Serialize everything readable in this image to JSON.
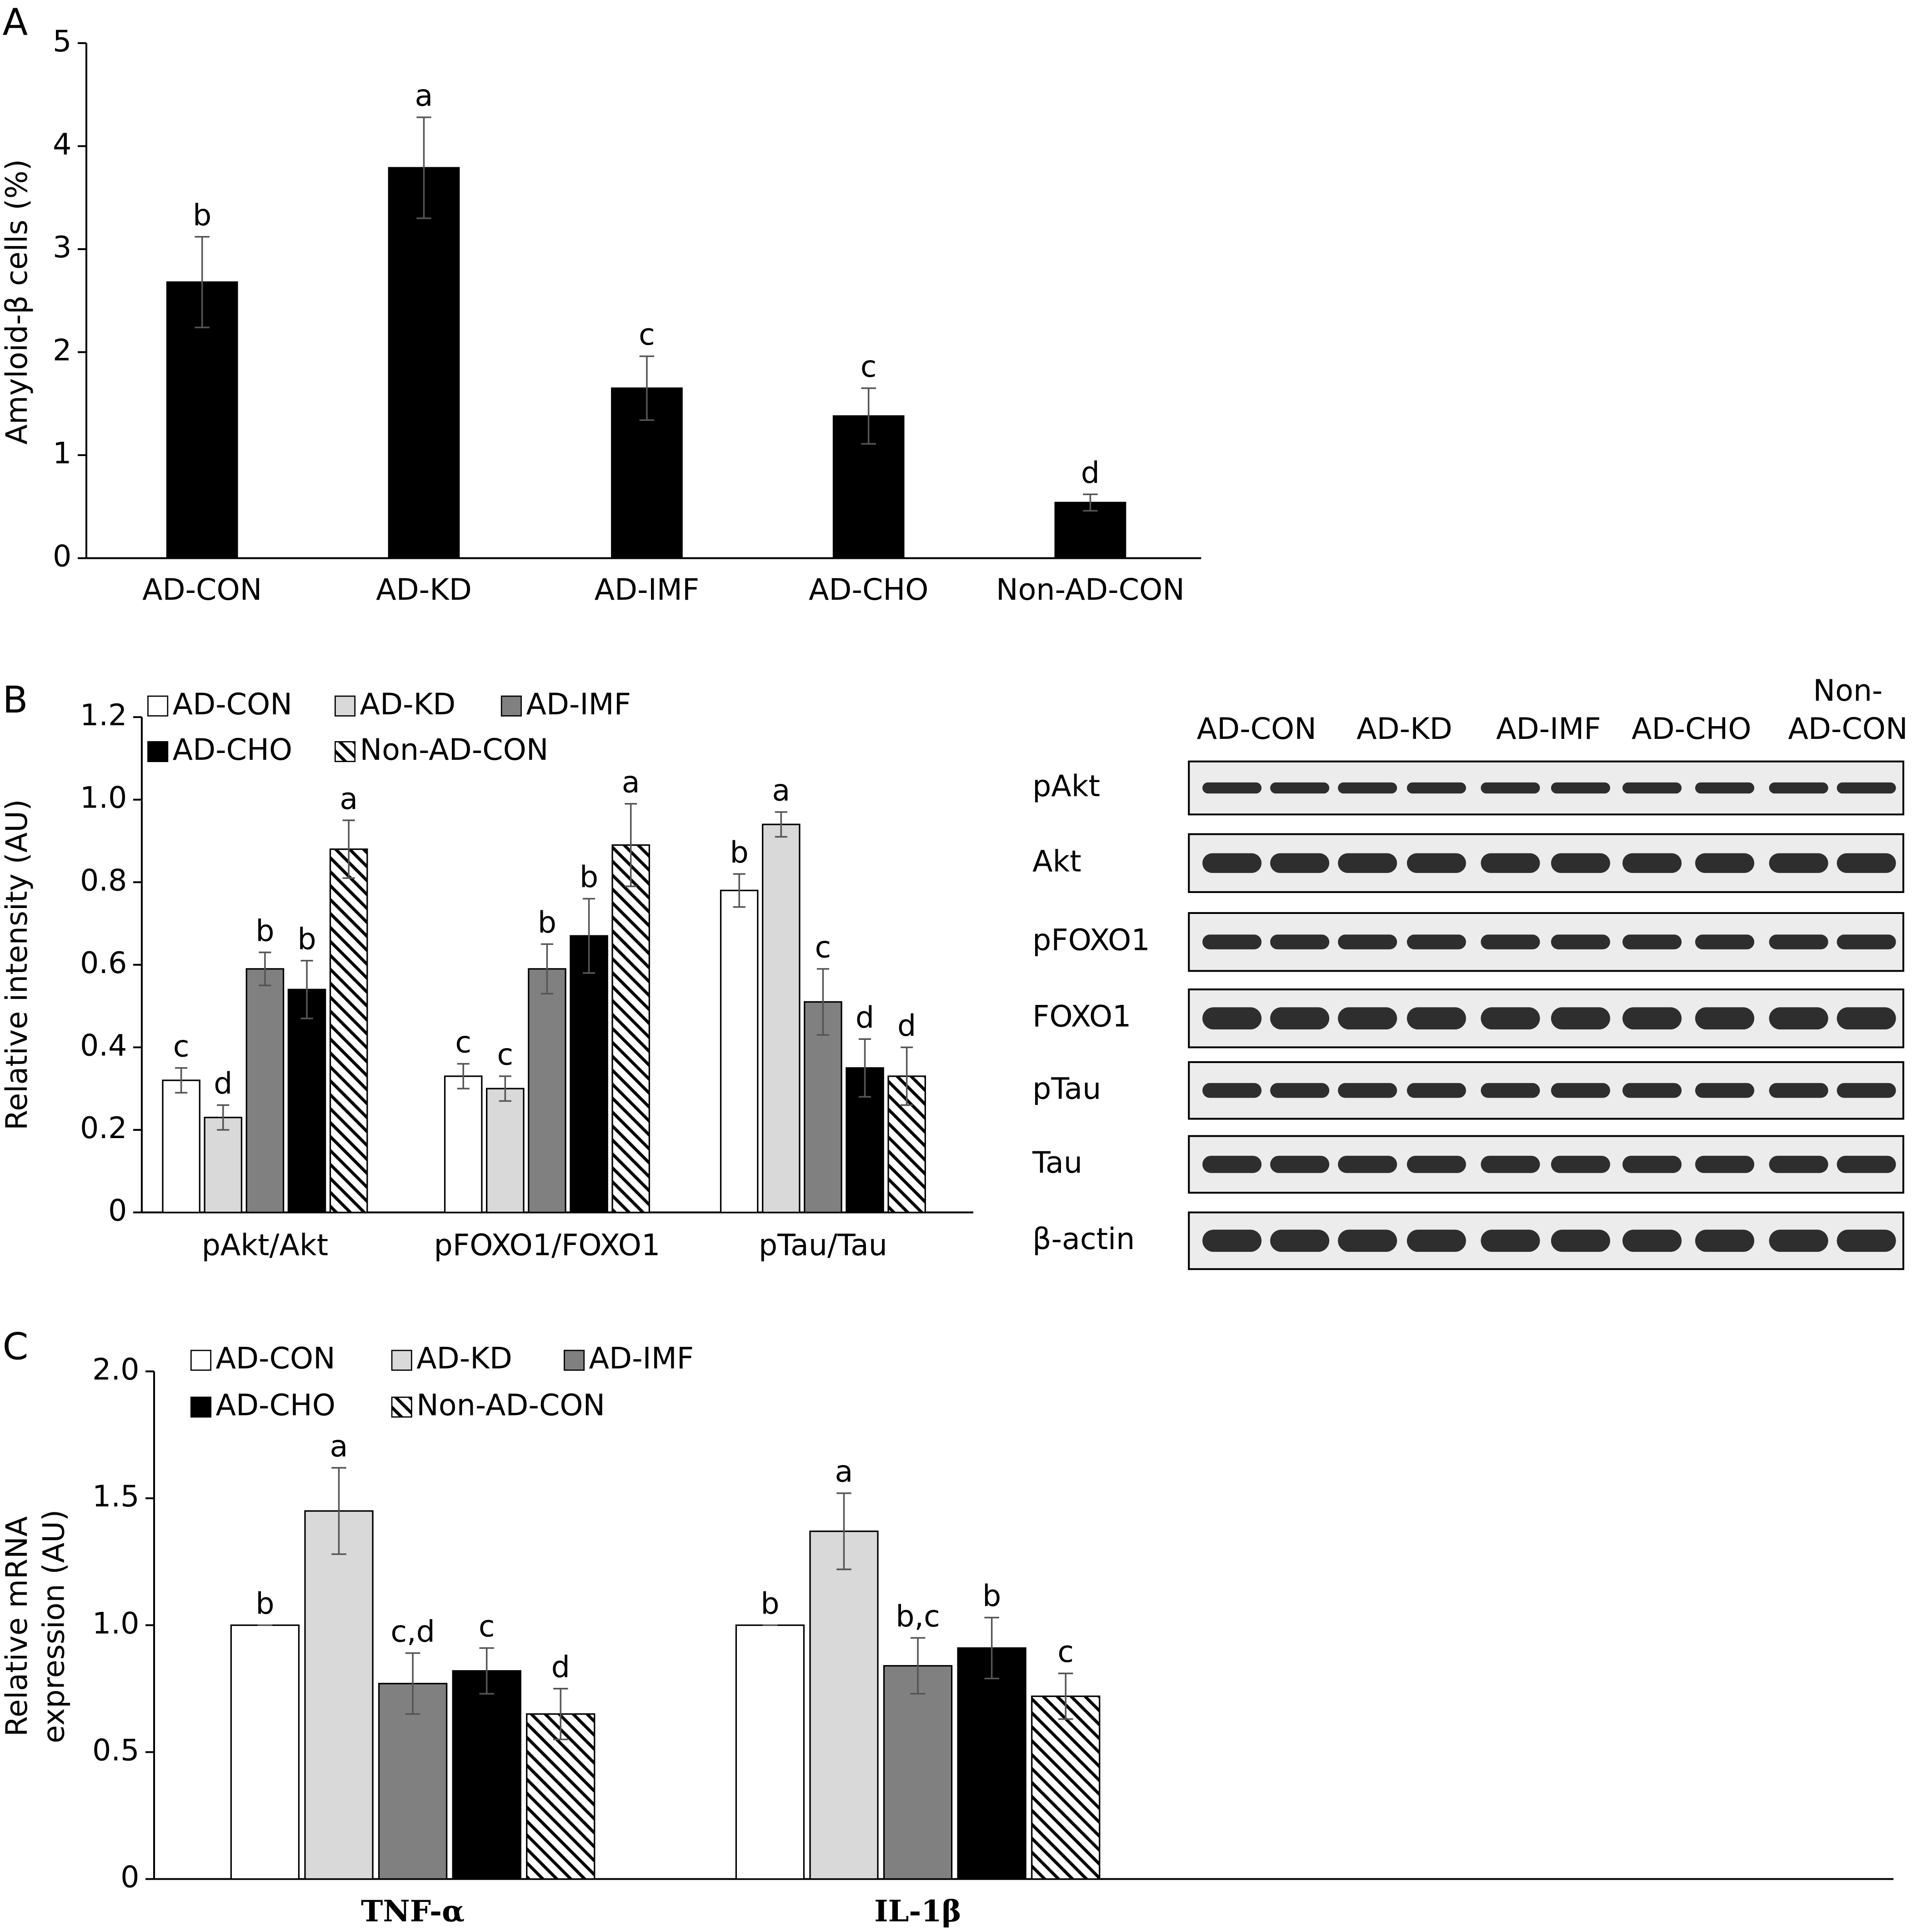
{
  "chart_data": [
    {
      "type": "bar",
      "panel": "A",
      "ylabel": "Amyloid-β cells (%)",
      "categories": [
        "AD-CON",
        "AD-KD",
        "AD-IMF",
        "AD-CHO",
        "Non-AD-CON"
      ],
      "values": [
        2.68,
        3.79,
        1.65,
        1.38,
        0.54
      ],
      "errors": [
        0.44,
        0.49,
        0.31,
        0.27,
        0.08
      ],
      "annotations": [
        "b",
        "a",
        "c",
        "c",
        "d"
      ],
      "color": "#000000",
      "ylim": [
        0,
        5
      ],
      "yticks": [
        0,
        1,
        2,
        3,
        4,
        5
      ],
      "grid": false
    },
    {
      "type": "bar",
      "panel": "B",
      "ylabel": "Relative intensity (AU)",
      "categories": [
        "pAkt/Akt",
        "pFOXO1/FOXO1",
        "pTau/Tau"
      ],
      "series": [
        {
          "name": "AD-CON",
          "color": "#ffffff",
          "values": [
            0.32,
            0.33,
            0.78
          ],
          "errors": [
            0.03,
            0.03,
            0.04
          ],
          "annotations": [
            "c",
            "c",
            "b"
          ]
        },
        {
          "name": "AD-KD",
          "color": "#d9d9d9",
          "values": [
            0.23,
            0.3,
            0.94
          ],
          "errors": [
            0.03,
            0.03,
            0.03
          ],
          "annotations": [
            "d",
            "c",
            "a"
          ]
        },
        {
          "name": "AD-IMF",
          "color": "#808080",
          "values": [
            0.59,
            0.59,
            0.51
          ],
          "errors": [
            0.04,
            0.06,
            0.08
          ],
          "annotations": [
            "b",
            "b",
            "c"
          ]
        },
        {
          "name": "AD-CHO",
          "color": "#000000",
          "values": [
            0.54,
            0.67,
            0.35
          ],
          "errors": [
            0.07,
            0.09,
            0.07
          ],
          "annotations": [
            "b",
            "b",
            "d"
          ]
        },
        {
          "name": "Non-AD-CON",
          "color": "#000000",
          "pattern": "hatch",
          "values": [
            0.88,
            0.89,
            0.33
          ],
          "errors": [
            0.07,
            0.1,
            0.07
          ],
          "annotations": [
            "a",
            "a",
            "d"
          ]
        }
      ],
      "ylim": [
        0,
        1.2
      ],
      "yticks": [
        0,
        0.2,
        0.4,
        0.6,
        0.8,
        {
          "value": 1,
          "label": "1.0"
        },
        1.2
      ],
      "grid": false,
      "legend": "top-left"
    },
    {
      "type": "bar",
      "panel": "C",
      "ylabel": [
        "Relative mRNA",
        "expression (AU)"
      ],
      "categories": [
        "TNF-α",
        "IL-1β"
      ],
      "series": [
        {
          "name": "AD-CON",
          "color": "#ffffff",
          "values": [
            1.0,
            1.0
          ],
          "errors": [
            0,
            0
          ],
          "annotations": [
            "b",
            "b"
          ]
        },
        {
          "name": "AD-KD",
          "color": "#d9d9d9",
          "values": [
            1.45,
            1.37
          ],
          "errors": [
            0.17,
            0.15
          ],
          "annotations": [
            "a",
            "a"
          ]
        },
        {
          "name": "AD-IMF",
          "color": "#808080",
          "values": [
            0.77,
            0.84
          ],
          "errors": [
            0.12,
            0.11
          ],
          "annotations": [
            "c,d",
            "b,c"
          ]
        },
        {
          "name": "AD-CHO",
          "color": "#000000",
          "values": [
            0.82,
            0.91
          ],
          "errors": [
            0.09,
            0.12
          ],
          "annotations": [
            "c",
            "b"
          ]
        },
        {
          "name": "Non-AD-CON",
          "color": "#000000",
          "pattern": "hatch",
          "values": [
            0.65,
            0.72
          ],
          "errors": [
            0.1,
            0.09
          ],
          "annotations": [
            "d",
            "c"
          ]
        }
      ],
      "ylim": [
        0,
        2
      ],
      "yticks": [
        0,
        0.5,
        {
          "value": 1,
          "label": "1.0"
        },
        1.5,
        {
          "value": 2,
          "label": "2.0"
        }
      ],
      "grid": false,
      "legend": "top-left"
    }
  ],
  "blot": {
    "groups": [
      "AD-CON",
      "AD-KD",
      "AD-IMF",
      "AD-CHO",
      [
        "Non-",
        "AD-CON"
      ]
    ],
    "rows": [
      "pAkt",
      "Akt",
      "pFOXO1",
      "FOXO1",
      "pTau",
      "Tau",
      "β-actin"
    ]
  }
}
